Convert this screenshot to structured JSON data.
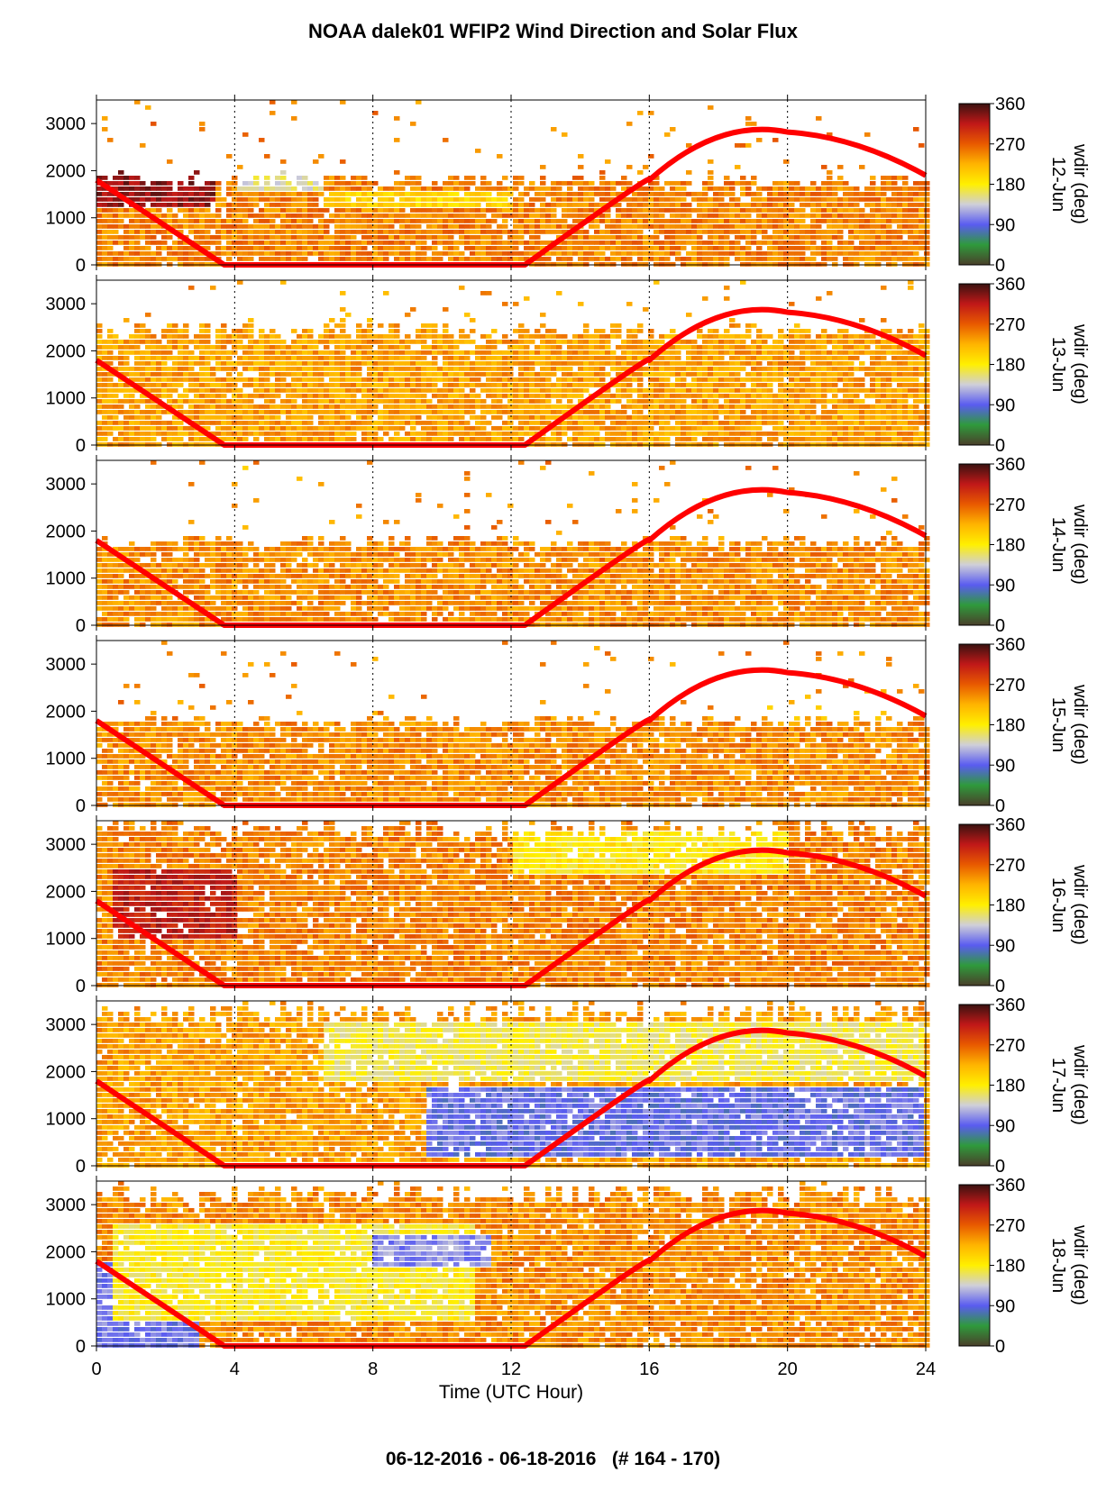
{
  "title": "NOAA dalek01 WFIP2 Wind Direction and Solar Flux",
  "footer": "06-12-2016 - 06-18-2016   (# 164 - 170)",
  "colors": {
    "solar_flux_line": "#ff0000",
    "colormap": [
      "#4a3f2a",
      "#2f9a3c",
      "#5a5cf0",
      "#cfcfd8",
      "#fff000",
      "#ffb400",
      "#e85a00",
      "#c01818",
      "#3a1210"
    ]
  },
  "chart_data": {
    "type": "heatmap",
    "xlabel": "Time (UTC Hour)",
    "xlim": [
      0,
      24
    ],
    "xticks": [
      0,
      4,
      8,
      12,
      16,
      20,
      24
    ],
    "ylim": [
      0,
      3500
    ],
    "yticks": [
      0,
      1000,
      2000,
      3000
    ],
    "grid_x": [
      4,
      8,
      12,
      16,
      20
    ],
    "colorbar": {
      "label": "wdir (deg)",
      "range": [
        0,
        360
      ],
      "ticks": [
        0,
        90,
        180,
        270,
        360
      ]
    },
    "solar_flux_overlay": {
      "series_points_hour_height": [
        [
          0,
          1800
        ],
        [
          3.7,
          0
        ],
        [
          12.4,
          0
        ],
        [
          16,
          1800
        ],
        [
          20,
          2820
        ],
        [
          24,
          1900
        ]
      ]
    },
    "panels": [
      {
        "date": "12-Jun",
        "top_height": 1850,
        "dominant_wdir": 250,
        "features": [
          {
            "hours": [
              0,
              3.5
            ],
            "heights": [
              1200,
              2000
            ],
            "wdir": 330
          },
          {
            "hours": [
              4,
              6.5
            ],
            "heights": [
              1500,
              2000
            ],
            "wdir": 150
          },
          {
            "hours": [
              6.5,
              12
            ],
            "heights": [
              1200,
              1600
            ],
            "wdir": 200
          }
        ]
      },
      {
        "date": "13-Jun",
        "top_height": 2500,
        "dominant_wdir": 235,
        "features": []
      },
      {
        "date": "14-Jun",
        "top_height": 1800,
        "dominant_wdir": 245,
        "features": [
          {
            "hours": [
              4,
              7.5
            ],
            "heights": [
              2000,
              3400
            ],
            "wdir": 220
          }
        ]
      },
      {
        "date": "15-Jun",
        "top_height": 1800,
        "dominant_wdir": 245,
        "features": [
          {
            "hours": [
              19,
              23
            ],
            "heights": [
              1800,
              2400
            ],
            "wdir": 220
          }
        ]
      },
      {
        "date": "16-Jun",
        "top_height": 3400,
        "dominant_wdir": 250,
        "features": [
          {
            "hours": [
              0.5,
              4
            ],
            "heights": [
              1000,
              2500
            ],
            "wdir": 310
          },
          {
            "hours": [
              12,
              20
            ],
            "heights": [
              2400,
              3300
            ],
            "wdir": 185
          }
        ]
      },
      {
        "date": "17-Jun",
        "top_height": 3300,
        "dominant_wdir": 235,
        "features": [
          {
            "hours": [
              6.5,
              24
            ],
            "heights": [
              1800,
              3000
            ],
            "wdir": 165
          },
          {
            "hours": [
              9.5,
              24
            ],
            "heights": [
              150,
              1700
            ],
            "wdir": 95
          }
        ]
      },
      {
        "date": "18-Jun",
        "top_height": 3300,
        "dominant_wdir": 245,
        "features": [
          {
            "hours": [
              0,
              3
            ],
            "heights": [
              0,
              1800
            ],
            "wdir": 100
          },
          {
            "hours": [
              0.5,
              11
            ],
            "heights": [
              500,
              2600
            ],
            "wdir": 175
          },
          {
            "hours": [
              8,
              11.5
            ],
            "heights": [
              1700,
              2400
            ],
            "wdir": 110
          }
        ]
      }
    ]
  }
}
